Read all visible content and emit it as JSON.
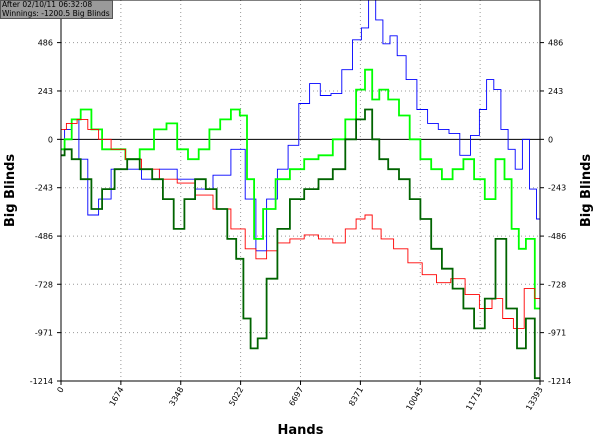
{
  "info": {
    "line1": "After 02/10/11 06:32:08",
    "line2": "Winnings: -1200.5 Big Blinds"
  },
  "chart_data": {
    "type": "line",
    "xlabel": "Hands",
    "ylabel": "Big Blinds",
    "xlim": [
      0,
      13393
    ],
    "ylim": [
      -1214,
      700
    ],
    "x_ticks": [
      "0",
      "1674",
      "3348",
      "5022",
      "6697",
      "8371",
      "10045",
      "11719",
      "13393"
    ],
    "y_ticks": [
      "486",
      "243",
      "0",
      "-243",
      "-486",
      "-728",
      "-971",
      "-1214"
    ],
    "grid": true,
    "legend": "none",
    "series": [
      {
        "color": "#0000ff",
        "x": [
          0,
          200,
          400,
          600,
          900,
          1200,
          1600,
          2000,
          2500,
          3000,
          3500,
          4000,
          4500,
          5000,
          5300,
          5600,
          5900,
          6200,
          6500,
          6800,
          7100,
          7400,
          7700,
          8000,
          8300,
          8500,
          8700,
          8900,
          9100,
          9300,
          9500,
          9800,
          10100,
          10400,
          10700,
          11000,
          11300,
          11600,
          11800,
          12000,
          12200,
          12400,
          12600,
          12800,
          13000,
          13200,
          13393
        ],
        "y": [
          -80,
          50,
          100,
          -100,
          -380,
          -300,
          -150,
          -150,
          -200,
          -150,
          -200,
          -250,
          -180,
          -50,
          -300,
          -560,
          -300,
          -150,
          -30,
          180,
          280,
          220,
          230,
          350,
          500,
          560,
          700,
          600,
          480,
          520,
          420,
          300,
          150,
          80,
          50,
          30,
          -80,
          20,
          150,
          300,
          250,
          50,
          -50,
          -150,
          0,
          -250,
          -400
        ]
      },
      {
        "color": "#00ff00",
        "x": [
          0,
          200,
          400,
          700,
          1000,
          1300,
          1600,
          2000,
          2400,
          2800,
          3100,
          3400,
          3700,
          4000,
          4300,
          4600,
          4900,
          5100,
          5300,
          5500,
          5800,
          6200,
          6600,
          7000,
          7400,
          7800,
          8100,
          8400,
          8600,
          8800,
          9000,
          9300,
          9600,
          9900,
          10200,
          10500,
          10800,
          11100,
          11400,
          11700,
          12000,
          12300,
          12500,
          12700,
          12900,
          13100,
          13393
        ],
        "y": [
          -50,
          0,
          100,
          150,
          50,
          -50,
          -50,
          -100,
          -50,
          50,
          80,
          -50,
          -100,
          -50,
          50,
          100,
          150,
          120,
          -200,
          -500,
          -350,
          -200,
          -150,
          -100,
          -80,
          0,
          100,
          250,
          350,
          200,
          250,
          200,
          120,
          0,
          -100,
          -150,
          -200,
          -150,
          -100,
          -200,
          -300,
          -100,
          -200,
          -450,
          -550,
          -500,
          -850
        ]
      },
      {
        "color": "#ff0000",
        "x": [
          0,
          300,
          600,
          900,
          1200,
          1600,
          2000,
          2500,
          3000,
          3500,
          4000,
          4500,
          5000,
          5300,
          5600,
          5900,
          6200,
          6600,
          7000,
          7400,
          7800,
          8100,
          8400,
          8600,
          8800,
          9100,
          9500,
          9900,
          10300,
          10700,
          11100,
          11500,
          11900,
          12200,
          12500,
          12800,
          13100,
          13393
        ],
        "y": [
          50,
          80,
          100,
          50,
          0,
          -50,
          -100,
          -150,
          -200,
          -220,
          -280,
          -350,
          -450,
          -550,
          -600,
          -560,
          -520,
          -500,
          -480,
          -500,
          -520,
          -450,
          -400,
          -380,
          -450,
          -500,
          -550,
          -620,
          -680,
          -720,
          -700,
          -780,
          -850,
          -800,
          -900,
          -950,
          -750,
          -800
        ]
      },
      {
        "color": "#006400",
        "x": [
          0,
          200,
          400,
          700,
          1000,
          1300,
          1700,
          2000,
          2400,
          2700,
          3000,
          3300,
          3600,
          3900,
          4200,
          4500,
          4800,
          5000,
          5200,
          5400,
          5600,
          5900,
          6200,
          6600,
          7000,
          7400,
          7800,
          8100,
          8400,
          8600,
          8800,
          9000,
          9300,
          9600,
          9900,
          10200,
          10500,
          10800,
          11100,
          11400,
          11700,
          12000,
          12300,
          12600,
          12900,
          13100,
          13393
        ],
        "y": [
          -80,
          -50,
          -100,
          -200,
          -350,
          -250,
          -150,
          -100,
          -150,
          -200,
          -300,
          -450,
          -300,
          -200,
          -250,
          -350,
          -500,
          -600,
          -900,
          -1050,
          -1000,
          -700,
          -450,
          -300,
          -250,
          -200,
          -150,
          0,
          100,
          150,
          0,
          -100,
          -150,
          -200,
          -300,
          -400,
          -550,
          -650,
          -750,
          -850,
          -950,
          -800,
          -500,
          -850,
          -1050,
          -900,
          -1200
        ]
      }
    ]
  }
}
